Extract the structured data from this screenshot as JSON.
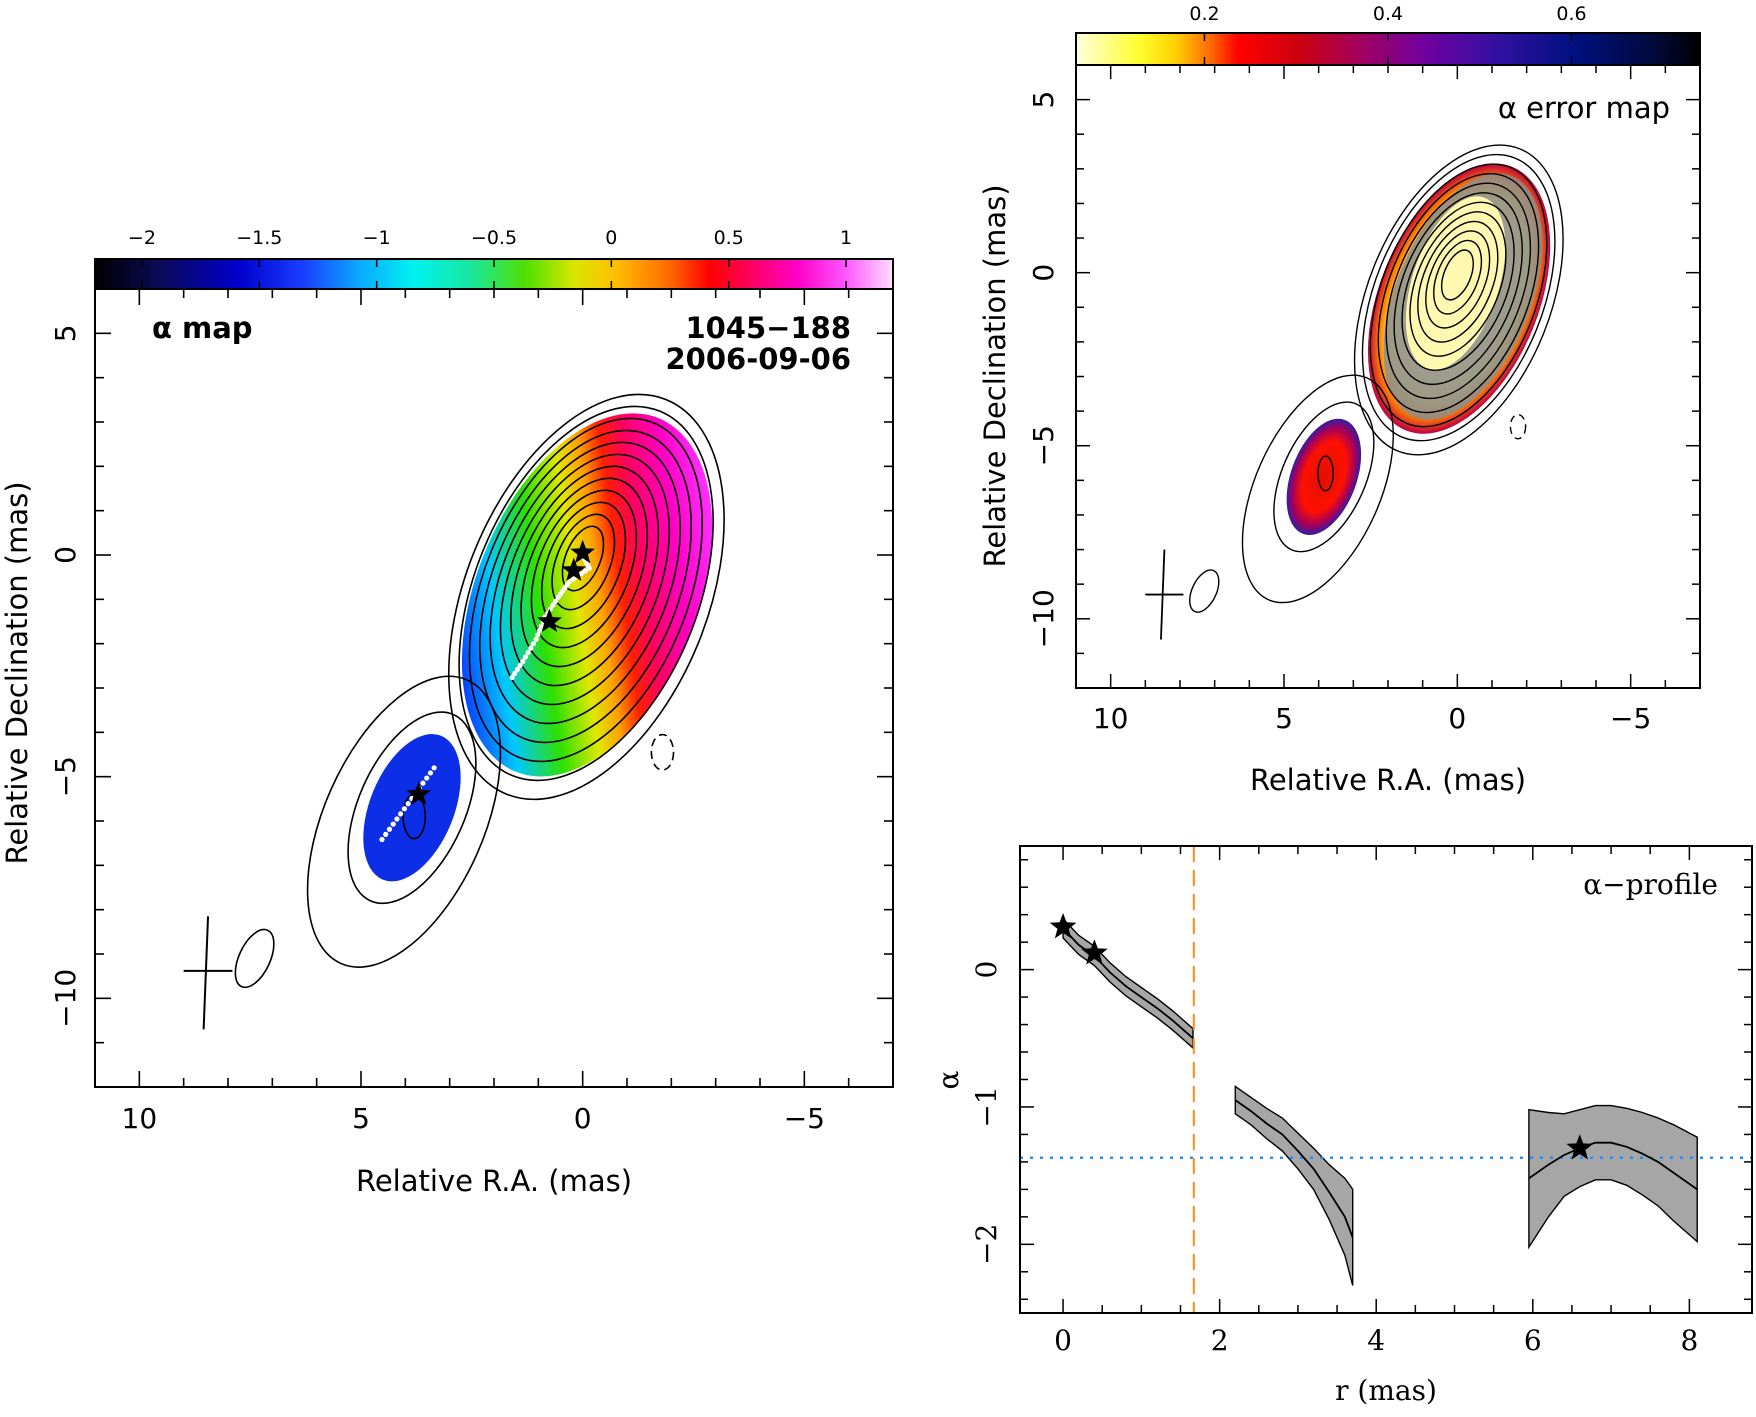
{
  "chart_data": [
    {
      "type": "heatmap",
      "panel": "alpha-map",
      "title": "α map",
      "source": "1045−188",
      "epoch": "2006-09-06",
      "xlabel": "Relative R.A. (mas)",
      "ylabel": "Relative Declination (mas)",
      "xlim": [
        11,
        -7
      ],
      "ylim": [
        -12,
        6
      ],
      "xticks": [
        10,
        5,
        0,
        -5
      ],
      "yticks": [
        5,
        0,
        -5,
        -10
      ],
      "xtick_labels": [
        "10",
        "5",
        "0",
        "−5"
      ],
      "ytick_labels": [
        "5",
        "0",
        "−5",
        "−10"
      ],
      "colorbar": {
        "range": [
          -2.2,
          1.2
        ],
        "ticks": [
          -2,
          -1.5,
          -1,
          -0.5,
          0,
          0.5,
          1
        ],
        "tick_labels": [
          "−2",
          "−1.5",
          "−1",
          "−0.5",
          "0",
          "0.5",
          "1"
        ]
      },
      "stars": [
        [
          0,
          0.05
        ],
        [
          0.2,
          -0.35
        ],
        [
          0.75,
          -1.5
        ],
        [
          3.7,
          -5.4
        ]
      ]
    },
    {
      "type": "heatmap",
      "panel": "alpha-error-map",
      "title": "α error map",
      "xlabel": "Relative R.A. (mas)",
      "ylabel": "Relative Declination (mas)",
      "xlim": [
        11,
        -7
      ],
      "ylim": [
        -12,
        6
      ],
      "xticks": [
        10,
        5,
        0,
        -5
      ],
      "yticks": [
        5,
        0,
        -5,
        -10
      ],
      "xtick_labels": [
        "10",
        "5",
        "0",
        "−5"
      ],
      "ytick_labels": [
        "5",
        "0",
        "−5",
        "−10"
      ],
      "colorbar": {
        "range": [
          0.06,
          0.74
        ],
        "ticks": [
          0.2,
          0.4,
          0.6
        ],
        "tick_labels": [
          "0.2",
          "0.4",
          "0.6"
        ]
      }
    },
    {
      "type": "line",
      "panel": "alpha-profile",
      "title": "α−profile",
      "xlabel": "r (mas)",
      "ylabel": "α",
      "xlim": [
        -0.55,
        8.8
      ],
      "ylim": [
        -2.5,
        0.9
      ],
      "xticks": [
        0,
        2,
        4,
        6,
        8
      ],
      "yticks": [
        0,
        -1,
        -2
      ],
      "xtick_labels": [
        "0",
        "2",
        "4",
        "6",
        "8"
      ],
      "ytick_labels": [
        "0",
        "−1",
        "−2"
      ],
      "vline_x": 1.67,
      "hline_y": -1.37,
      "series": [
        {
          "x": [
            0,
            0.2,
            0.4,
            0.6,
            0.8,
            1.0,
            1.2,
            1.4,
            1.66
          ],
          "y": [
            0.3,
            0.18,
            0.1,
            -0.02,
            -0.12,
            -0.2,
            -0.28,
            -0.37,
            -0.5
          ],
          "err": [
            0.07,
            0.07,
            0.07,
            0.07,
            0.07,
            0.07,
            0.07,
            0.07,
            0.07
          ]
        },
        {
          "x": [
            2.2,
            2.4,
            2.6,
            2.8,
            3.0,
            3.2,
            3.4,
            3.6,
            3.7
          ],
          "y": [
            -0.95,
            -1.03,
            -1.12,
            -1.2,
            -1.32,
            -1.45,
            -1.62,
            -1.8,
            -1.95
          ],
          "err": [
            0.1,
            0.1,
            0.11,
            0.12,
            0.13,
            0.15,
            0.2,
            0.28,
            0.35
          ]
        },
        {
          "x": [
            5.95,
            6.2,
            6.4,
            6.6,
            6.8,
            7.0,
            7.2,
            7.4,
            7.6,
            7.8,
            8.1
          ],
          "y": [
            -1.52,
            -1.42,
            -1.35,
            -1.3,
            -1.26,
            -1.26,
            -1.29,
            -1.34,
            -1.4,
            -1.48,
            -1.6
          ],
          "err": [
            0.5,
            0.38,
            0.3,
            0.28,
            0.27,
            0.27,
            0.28,
            0.3,
            0.32,
            0.35,
            0.38
          ]
        }
      ],
      "stars": [
        [
          0,
          0.31
        ],
        [
          0.4,
          0.12
        ],
        [
          6.6,
          -1.3
        ]
      ]
    }
  ]
}
